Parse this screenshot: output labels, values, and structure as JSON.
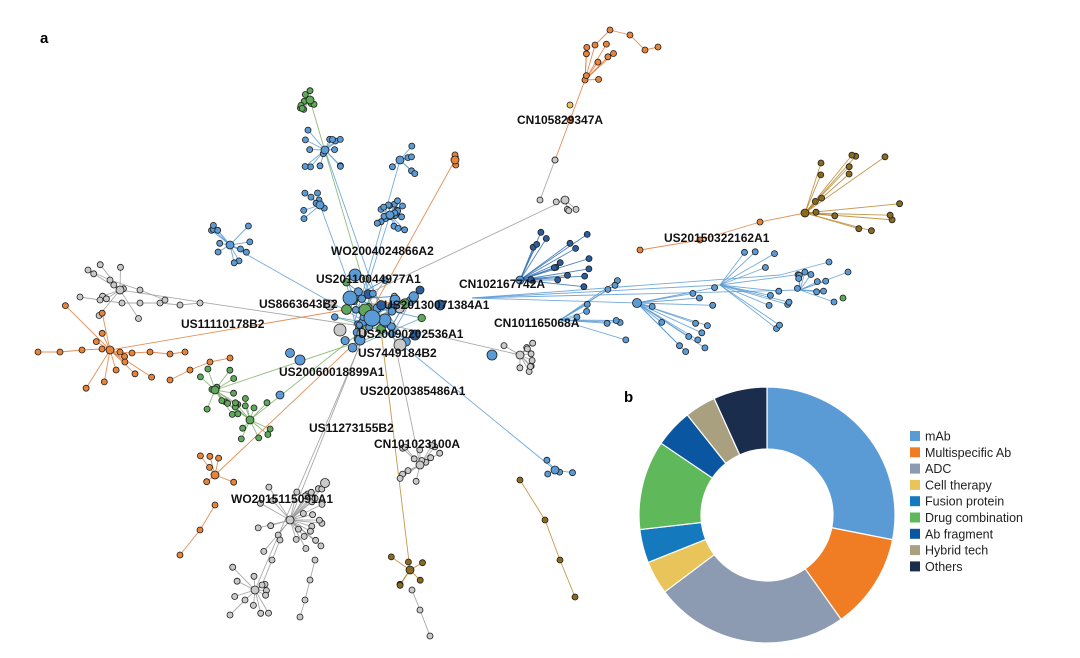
{
  "panels": {
    "a": "a",
    "b": "b"
  },
  "colors": {
    "mAb": "#5b9bd5",
    "multispecific": "#f07d24",
    "adc": "#8c9bb2",
    "cell": "#e8c45a",
    "fusion": "#1479bd",
    "drug": "#5fb85a",
    "fragment": "#0b56a0",
    "hybrid": "#a8a07e",
    "others": "#1b2d4c",
    "grey_node": "#c9c9c9",
    "brown_node": "#8a6a1e"
  },
  "network": {
    "labels": [
      "CN105829347A",
      "US20150322162A1",
      "WO2004024866A2",
      "CN102167742A",
      "US20110044977A1",
      "US8663643B2",
      "US20130071384A1",
      "US11110178B2",
      "CN101165068A",
      "US20090202536A1",
      "US7449184B2",
      "US20060018899A1",
      "US20200385486A1",
      "US11273155B2",
      "CN101023100A",
      "WO2015115091A1"
    ]
  },
  "chart_data": {
    "type": "pie",
    "donut": true,
    "legend_position": "right",
    "categories": [
      "mAb",
      "Multispecific Ab",
      "ADC",
      "Cell therapy",
      "Fusion protein",
      "Drug combination",
      "Ab fragment",
      "Hybrid tech",
      "Others"
    ],
    "values": [
      28.6,
      12.3,
      25.0,
      4.3,
      4.3,
      11.5,
      4.9,
      4.0,
      6.9
    ]
  }
}
